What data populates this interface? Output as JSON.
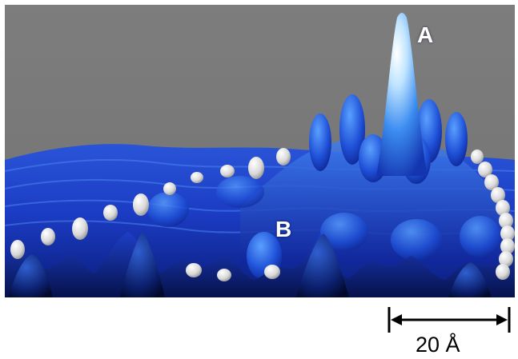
{
  "figure": {
    "label_a": "A",
    "label_b": "B",
    "scale_bar_label": "20 Å"
  },
  "colors": {
    "background": "#7a7a7a",
    "surface_dark": "#0b1a5c",
    "surface_mid": "#1a3fd0",
    "surface_light": "#4aa8ff",
    "adatom": "#e8e8e8",
    "label_text": "#ffffff",
    "scale_bar": "#000000"
  }
}
